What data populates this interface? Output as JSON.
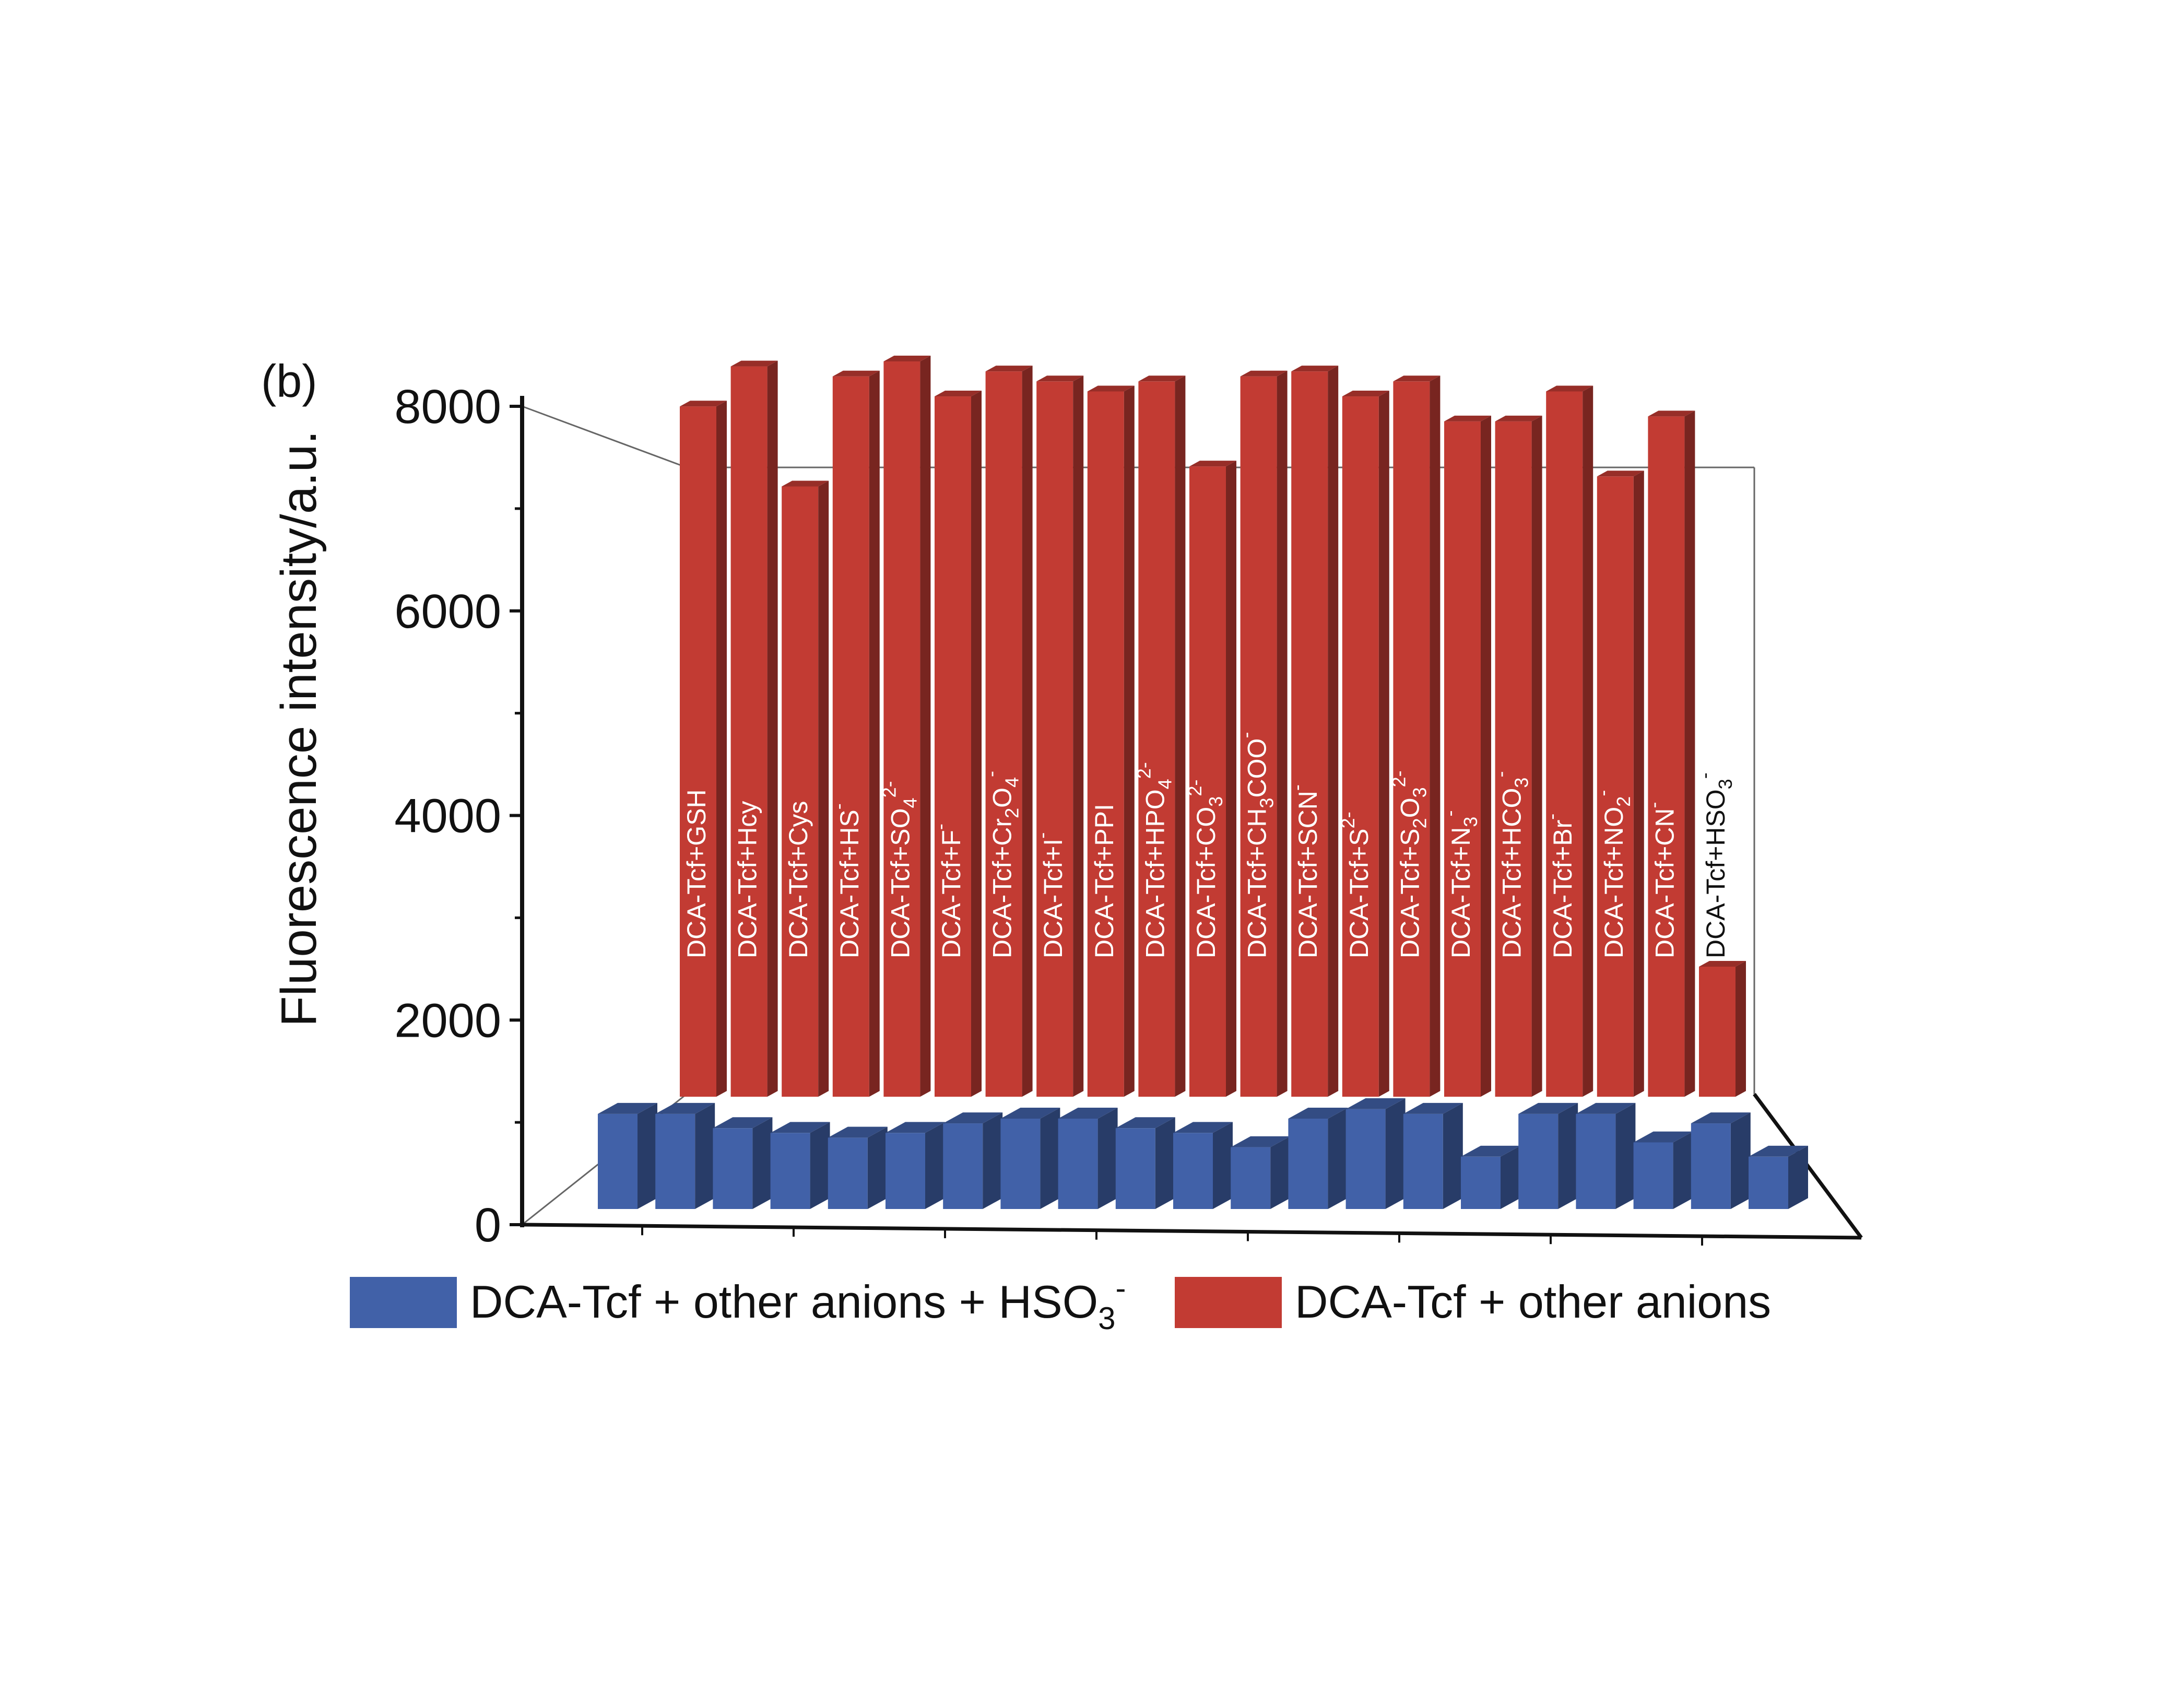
{
  "chart_data": {
    "type": "bar",
    "panel_label": "(b)",
    "title": "",
    "xlabel": "",
    "ylabel": "Fluorescence intensity/a.u.",
    "ylim": [
      0,
      8000
    ],
    "yticks": [
      "0",
      "2000",
      "4000",
      "6000",
      "8000"
    ],
    "grid": false,
    "legend_position": "bottom",
    "three_d": true,
    "categories": [
      {
        "base": "DCA-Tcf+GSH",
        "sub": "",
        "sup": ""
      },
      {
        "base": "DCA-Tcf+Hcy",
        "sub": "",
        "sup": ""
      },
      {
        "base": "DCA-Tcf+Cys",
        "sub": "",
        "sup": ""
      },
      {
        "base": "DCA-Tcf+HS",
        "sub": "",
        "sup": "-"
      },
      {
        "base": "DCA-Tcf+SO",
        "sub": "4",
        "sup": "2-"
      },
      {
        "base": "DCA-Tcf+F",
        "sub": "",
        "sup": "-"
      },
      {
        "base": "DCA-Tcf+Cr",
        "sub": "2",
        "mid": "O",
        "sub2": "4",
        "sup": "-"
      },
      {
        "base": "DCA-Tcf+I",
        "sub": "",
        "sup": "-"
      },
      {
        "base": "DCA-Tcf+PPI",
        "sub": "",
        "sup": ""
      },
      {
        "base": "DCA-Tcf+HPO",
        "sub": "4",
        "sup": "2-"
      },
      {
        "base": "DCA-Tcf+CO",
        "sub": "3",
        "sup": "2-"
      },
      {
        "base": "DCA-Tcf+CH",
        "sub": "3",
        "mid": "COO",
        "sub2": "",
        "sup": "-"
      },
      {
        "base": "DCA-Tcf+SCN",
        "sub": "",
        "sup": "-"
      },
      {
        "base": "DCA-Tcf+S",
        "sub": "",
        "sup": "2-"
      },
      {
        "base": "DCA-Tcf+S",
        "sub": "2",
        "mid": "O",
        "sub2": "3",
        "sup": "2-"
      },
      {
        "base": "DCA-Tcf+N",
        "sub": "3",
        "sup": "-"
      },
      {
        "base": "DCA-Tcf+HCO",
        "sub": "3",
        "sup": "-"
      },
      {
        "base": "DCA-Tcf+Br",
        "sub": "",
        "sup": "-"
      },
      {
        "base": "DCA-Tcf+NO",
        "sub": "2",
        "sup": "-"
      },
      {
        "base": "DCA-Tcf+CN",
        "sub": "",
        "sup": "-"
      },
      {
        "base": "DCA-Tcf+HSO",
        "sub": "3",
        "sup": "-"
      }
    ],
    "series": [
      {
        "name": "DCA-Tcf + other anions + HSO3-",
        "legend": {
          "base": "DCA-Tcf + other anions + HSO",
          "sub": "3",
          "sup": "-"
        },
        "color": "#4161a8",
        "values": [
          1000,
          1000,
          850,
          800,
          750,
          800,
          900,
          950,
          950,
          850,
          800,
          650,
          950,
          1050,
          1000,
          550,
          1000,
          1000,
          700,
          900,
          550
        ]
      },
      {
        "name": "DCA-Tcf + other anions",
        "legend": {
          "base": "DCA-Tcf + other anions",
          "sub": "",
          "sup": ""
        },
        "color": "#c23b33",
        "values": [
          6900,
          7300,
          6100,
          7200,
          7350,
          7000,
          7250,
          7150,
          7050,
          7150,
          6300,
          7200,
          7250,
          7000,
          7150,
          6750,
          6750,
          7050,
          6200,
          6800,
          1300
        ]
      }
    ]
  }
}
